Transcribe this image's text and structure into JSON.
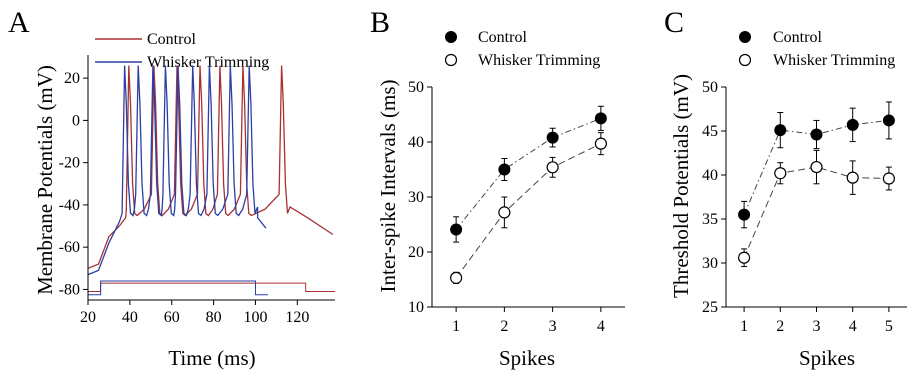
{
  "chart_data": [
    {
      "panel": "A",
      "type": "line",
      "xlabel": "Time (ms)",
      "ylabel": "Membrane Potentials (mV)",
      "xlim": [
        20,
        138
      ],
      "ylim": [
        -85,
        30
      ],
      "xticks": [
        "20",
        "40",
        "60",
        "80",
        "100",
        "120"
      ],
      "yticks": [
        "-80",
        "-60",
        "-40",
        "-20",
        "0",
        "20"
      ],
      "legend": {
        "placement": "top",
        "entries": [
          "Control",
          "Whisker Trimming"
        ]
      },
      "series": [
        {
          "name": "Control",
          "color": "#a83232",
          "spike_times": [
            39.5,
            51.5,
            62.5,
            73.5,
            83,
            94,
            112.5
          ],
          "trace": [
            [
              20,
              -70
            ],
            [
              25,
              -68
            ],
            [
              30,
              -55
            ],
            [
              35,
              -50
            ],
            [
              38,
              -46
            ]
          ],
          "step": [
            [
              20,
              -81
            ],
            [
              26,
              -81
            ],
            [
              26,
              -77
            ],
            [
              124,
              -77
            ],
            [
              124,
              -81
            ],
            [
              138,
              -81
            ]
          ]
        },
        {
          "name": "Whisker Trimming",
          "color": "#2b3fa6",
          "spike_times": [
            37.5,
            44,
            51,
            57,
            63,
            70,
            78,
            88,
            97
          ],
          "trace": [
            [
              20,
              -73
            ],
            [
              25,
              -71
            ],
            [
              30,
              -58
            ],
            [
              35,
              -48
            ]
          ],
          "step": [
            [
              20,
              -82.5
            ],
            [
              26,
              -82.5
            ],
            [
              26,
              -76
            ],
            [
              100,
              -76
            ],
            [
              100,
              -82.5
            ],
            [
              106,
              -82.5
            ]
          ]
        }
      ]
    },
    {
      "panel": "B",
      "type": "line",
      "xlabel": "Spikes",
      "ylabel": "Inter-spike Intervals (ms)",
      "xlim": [
        0.5,
        4.5
      ],
      "ylim": [
        10,
        50
      ],
      "xticks": [
        "1",
        "2",
        "3",
        "4"
      ],
      "yticks": [
        "10",
        "20",
        "30",
        "40",
        "50"
      ],
      "legend": {
        "placement": "top-left",
        "entries": [
          "Control",
          "Whisker Trimming"
        ]
      },
      "series": [
        {
          "name": "Control",
          "marker": "filled-circle",
          "x": [
            1,
            2,
            3,
            4
          ],
          "values": [
            24.1,
            35.0,
            40.8,
            44.3
          ],
          "errors": [
            2.3,
            2.0,
            1.7,
            2.2
          ]
        },
        {
          "name": "Whisker Trimming",
          "marker": "open-circle",
          "x": [
            1,
            2,
            3,
            4
          ],
          "values": [
            15.3,
            27.2,
            35.4,
            39.7
          ],
          "errors": [
            1.0,
            2.8,
            1.8,
            2.0
          ]
        }
      ]
    },
    {
      "panel": "C",
      "type": "line",
      "xlabel": "Spikes",
      "ylabel": "Threshold Potentials (mV)",
      "xlim": [
        0.5,
        5.5
      ],
      "ylim": [
        25,
        50
      ],
      "xticks": [
        "1",
        "2",
        "3",
        "4",
        "5"
      ],
      "yticks": [
        "25",
        "30",
        "35",
        "40",
        "45",
        "50"
      ],
      "legend": {
        "placement": "top-left",
        "entries": [
          "Control",
          "Whisker Trimming"
        ]
      },
      "series": [
        {
          "name": "Control",
          "marker": "filled-circle",
          "x": [
            1,
            2,
            3,
            4,
            5
          ],
          "values": [
            35.5,
            45.1,
            44.6,
            45.7,
            46.2
          ],
          "errors": [
            1.5,
            2.0,
            1.6,
            1.9,
            2.1
          ]
        },
        {
          "name": "Whisker Trimming",
          "marker": "open-circle",
          "x": [
            1,
            2,
            3,
            4,
            5
          ],
          "values": [
            30.6,
            40.2,
            40.9,
            39.7,
            39.6
          ],
          "errors": [
            1.0,
            1.2,
            1.9,
            1.9,
            1.3
          ]
        }
      ]
    }
  ]
}
